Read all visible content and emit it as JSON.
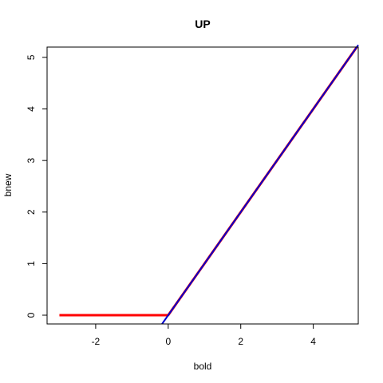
{
  "chart_data": {
    "type": "line",
    "title": "UP",
    "xlabel": "bold",
    "ylabel": "bnew",
    "xlim": [
      -3.34,
      5.24
    ],
    "ylim": [
      -0.17,
      5.2
    ],
    "x_ticks": [
      -2,
      0,
      2,
      4
    ],
    "y_ticks": [
      0,
      1,
      2,
      3,
      4,
      5
    ],
    "grid": false,
    "series": [
      {
        "color": "#ff0000",
        "line_width": 3,
        "points": [
          [
            -3,
            0
          ],
          [
            0,
            0
          ],
          [
            5.2,
            5.2
          ]
        ]
      },
      {
        "color": "#0000cc",
        "line_width": 2,
        "points": [
          [
            -0.17,
            -0.17
          ],
          [
            5.24,
            5.24
          ]
        ]
      }
    ]
  }
}
